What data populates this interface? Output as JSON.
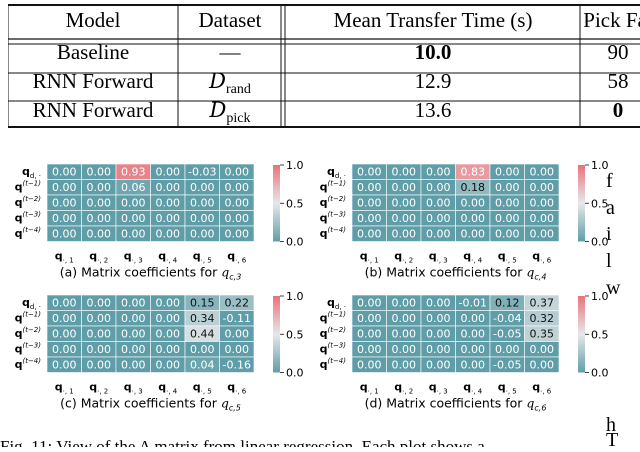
{
  "table": {
    "headers": [
      "Model",
      "Dataset",
      "Mean Transfer Time (s)",
      "Pick Fai"
    ],
    "rows": [
      {
        "model": "Baseline",
        "dataset_base": "—",
        "dataset_sub": "",
        "time": "10.0",
        "time_bold": true,
        "pick": "90",
        "pick_bold": false
      },
      {
        "model": "RNN Forward",
        "dataset_base": "D",
        "dataset_sub": "rand",
        "time": "12.9",
        "time_bold": false,
        "pick": "58",
        "pick_bold": false
      },
      {
        "model": "RNN Forward",
        "dataset_base": "D",
        "dataset_sub": "pick",
        "time": "13.6",
        "time_bold": false,
        "pick": "0",
        "pick_bold": true
      }
    ]
  },
  "heatmap_labels": {
    "row_labels": [
      {
        "base": "q",
        "sup": "",
        "sub": "d, ·"
      },
      {
        "base": "q",
        "sup": "(t−1)",
        "sub": "c, ·"
      },
      {
        "base": "q",
        "sup": "(t−2)",
        "sub": "c, ·"
      },
      {
        "base": "q",
        "sup": "(t−3)",
        "sub": "c, ·"
      },
      {
        "base": "q",
        "sup": "(t−4)",
        "sub": "c, ·"
      }
    ],
    "col_labels": [
      {
        "base": "q",
        "sub": "·, 1"
      },
      {
        "base": "q",
        "sub": "·, 2"
      },
      {
        "base": "q",
        "sub": "·, 3"
      },
      {
        "base": "q",
        "sub": "·, 4"
      },
      {
        "base": "q",
        "sub": "·, 5"
      },
      {
        "base": "q",
        "sub": "·, 6"
      }
    ],
    "colorbar_ticks": [
      "1.0",
      "0.5",
      "0.0"
    ]
  },
  "colors": {
    "neutral": "#5f9ea8",
    "low": "#4d8b97",
    "high": "#e8737a",
    "mid": "#e6e8ea"
  },
  "chart_data": [
    {
      "type": "heatmap",
      "caption_text": "(a) Matrix coefficients for ",
      "caption_var": "q",
      "caption_sub": "c,3",
      "values": [
        [
          0.0,
          0.0,
          0.93,
          0.0,
          -0.03,
          0.0
        ],
        [
          0.0,
          0.0,
          0.06,
          0.0,
          0.0,
          0.0
        ],
        [
          0.0,
          0.0,
          0.0,
          0.0,
          0.0,
          0.0
        ],
        [
          0.0,
          0.0,
          0.0,
          0.0,
          0.0,
          0.0
        ],
        [
          0.0,
          0.0,
          0.0,
          0.0,
          0.0,
          0.0
        ]
      ],
      "vmin": 0.0,
      "vmax": 1.0
    },
    {
      "type": "heatmap",
      "caption_text": "(b) Matrix coefficients for ",
      "caption_var": "q",
      "caption_sub": "c,4",
      "values": [
        [
          0.0,
          0.0,
          0.0,
          0.83,
          0.0,
          0.0
        ],
        [
          0.0,
          0.0,
          0.0,
          0.18,
          0.0,
          0.0
        ],
        [
          0.0,
          0.0,
          0.0,
          0.0,
          0.0,
          0.0
        ],
        [
          0.0,
          0.0,
          0.0,
          0.0,
          0.0,
          0.0
        ],
        [
          0.0,
          0.0,
          0.0,
          0.0,
          0.0,
          0.0
        ]
      ],
      "vmin": 0.0,
      "vmax": 1.0
    },
    {
      "type": "heatmap",
      "caption_text": "(c) Matrix coefficients for ",
      "caption_var": "q",
      "caption_sub": "c,5",
      "values": [
        [
          0.0,
          0.0,
          0.0,
          0.0,
          0.15,
          0.22
        ],
        [
          0.0,
          0.0,
          0.0,
          0.0,
          0.34,
          -0.11
        ],
        [
          0.0,
          0.0,
          0.0,
          0.0,
          0.44,
          0.0
        ],
        [
          0.0,
          0.0,
          0.0,
          0.0,
          0.0,
          0.0
        ],
        [
          0.0,
          0.0,
          0.0,
          0.0,
          0.04,
          -0.16
        ]
      ],
      "vmin": 0.0,
      "vmax": 1.0
    },
    {
      "type": "heatmap",
      "caption_text": "(d) Matrix coefficients for ",
      "caption_var": "q",
      "caption_sub": "c,6",
      "values": [
        [
          0.0,
          0.0,
          0.0,
          -0.01,
          0.12,
          0.37
        ],
        [
          0.0,
          0.0,
          0.0,
          0.0,
          -0.04,
          0.32
        ],
        [
          0.0,
          0.0,
          0.0,
          0.0,
          -0.05,
          0.35
        ],
        [
          0.0,
          0.0,
          0.0,
          0.0,
          0.0,
          0.0
        ],
        [
          0.0,
          0.0,
          0.0,
          0.0,
          -0.05,
          0.0
        ]
      ],
      "vmin": 0.0,
      "vmax": 1.0
    }
  ],
  "side_text": {
    "lines": [
      "f",
      "a",
      "i",
      "l",
      "w",
      "h",
      "T"
    ]
  },
  "bottom_caption": "Fig. 11: View of the A matrix from linear regression. Each plot shows a"
}
